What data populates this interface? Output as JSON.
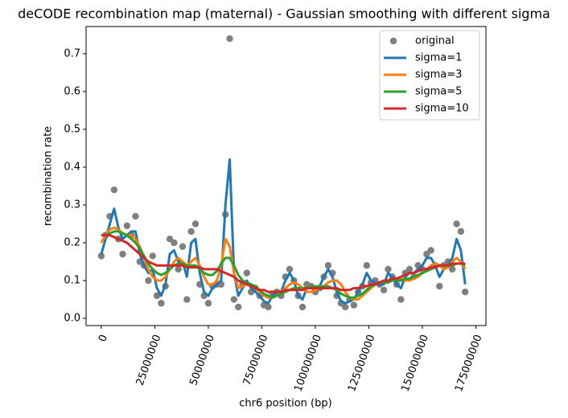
{
  "chart_data": {
    "type": "scatter_line",
    "title": "deCODE recombination map (maternal) - Gaussian smoothing with different sigma",
    "x_label": "chr6 position (bp)",
    "y_label": "recombination rate",
    "x": [
      0,
      2000000,
      4000000,
      6000000,
      8000000,
      10000000,
      12000000,
      14000000,
      16000000,
      18000000,
      20000000,
      22000000,
      24000000,
      26000000,
      28000000,
      30000000,
      32000000,
      34000000,
      36000000,
      38000000,
      40000000,
      42000000,
      44000000,
      46000000,
      48000000,
      50000000,
      52000000,
      54000000,
      56000000,
      58000000,
      60000000,
      62000000,
      64000000,
      66000000,
      68000000,
      70000000,
      72000000,
      74000000,
      76000000,
      78000000,
      80000000,
      82000000,
      84000000,
      86000000,
      88000000,
      90000000,
      92000000,
      94000000,
      96000000,
      98000000,
      100000000,
      102000000,
      104000000,
      106000000,
      108000000,
      110000000,
      112000000,
      114000000,
      116000000,
      118000000,
      120000000,
      122000000,
      124000000,
      126000000,
      128000000,
      130000000,
      132000000,
      134000000,
      136000000,
      138000000,
      140000000,
      142000000,
      144000000,
      146000000,
      148000000,
      150000000,
      152000000,
      154000000,
      156000000,
      158000000,
      160000000,
      162000000,
      164000000,
      166000000,
      168000000,
      170000000
    ],
    "scatter": {
      "name": "original",
      "color": "#7f7f7f",
      "values": [
        0.165,
        0.22,
        0.27,
        0.34,
        0.21,
        0.17,
        0.245,
        0.22,
        0.27,
        0.15,
        0.14,
        0.1,
        0.165,
        0.06,
        0.04,
        0.085,
        0.21,
        0.2,
        0.13,
        0.19,
        0.05,
        0.23,
        0.25,
        0.09,
        0.06,
        0.04,
        0.085,
        0.09,
        0.09,
        0.275,
        0.74,
        0.05,
        0.03,
        0.09,
        0.12,
        0.07,
        0.08,
        0.06,
        0.035,
        0.03,
        0.065,
        0.07,
        0.06,
        0.11,
        0.13,
        0.1,
        0.06,
        0.03,
        0.09,
        0.085,
        0.07,
        0.08,
        0.11,
        0.14,
        0.12,
        0.06,
        0.04,
        0.03,
        0.05,
        0.035,
        0.07,
        0.085,
        0.14,
        0.095,
        0.1,
        0.09,
        0.075,
        0.13,
        0.11,
        0.09,
        0.05,
        0.12,
        0.13,
        0.11,
        0.14,
        0.13,
        0.17,
        0.18,
        0.14,
        0.085,
        0.14,
        0.15,
        0.13,
        0.25,
        0.23,
        0.07
      ]
    },
    "series": [
      {
        "name": "sigma=1",
        "color": "#1f77b4",
        "values": [
          0.17,
          0.21,
          0.25,
          0.29,
          0.24,
          0.21,
          0.22,
          0.23,
          0.23,
          0.17,
          0.14,
          0.12,
          0.13,
          0.08,
          0.06,
          0.09,
          0.17,
          0.18,
          0.15,
          0.15,
          0.11,
          0.2,
          0.21,
          0.12,
          0.07,
          0.06,
          0.08,
          0.09,
          0.1,
          0.3,
          0.42,
          0.12,
          0.06,
          0.08,
          0.1,
          0.08,
          0.07,
          0.06,
          0.045,
          0.04,
          0.06,
          0.07,
          0.07,
          0.1,
          0.12,
          0.1,
          0.06,
          0.05,
          0.08,
          0.08,
          0.075,
          0.085,
          0.11,
          0.13,
          0.11,
          0.07,
          0.045,
          0.04,
          0.045,
          0.05,
          0.07,
          0.09,
          0.12,
          0.1,
          0.095,
          0.09,
          0.09,
          0.12,
          0.11,
          0.09,
          0.08,
          0.11,
          0.12,
          0.12,
          0.13,
          0.14,
          0.16,
          0.16,
          0.14,
          0.11,
          0.13,
          0.14,
          0.16,
          0.21,
          0.18,
          0.09
        ]
      },
      {
        "name": "sigma=3",
        "color": "#ff7f0e",
        "values": [
          0.2,
          0.22,
          0.235,
          0.24,
          0.235,
          0.225,
          0.22,
          0.22,
          0.21,
          0.19,
          0.16,
          0.13,
          0.11,
          0.1,
          0.1,
          0.11,
          0.13,
          0.15,
          0.16,
          0.15,
          0.14,
          0.15,
          0.16,
          0.14,
          0.11,
          0.09,
          0.09,
          0.1,
          0.14,
          0.21,
          0.19,
          0.12,
          0.08,
          0.085,
          0.09,
          0.09,
          0.08,
          0.07,
          0.06,
          0.055,
          0.055,
          0.06,
          0.07,
          0.08,
          0.09,
          0.095,
          0.09,
          0.08,
          0.07,
          0.07,
          0.075,
          0.08,
          0.085,
          0.095,
          0.1,
          0.1,
          0.09,
          0.07,
          0.055,
          0.05,
          0.05,
          0.06,
          0.07,
          0.08,
          0.09,
          0.095,
          0.095,
          0.095,
          0.1,
          0.105,
          0.105,
          0.1,
          0.1,
          0.105,
          0.11,
          0.12,
          0.13,
          0.14,
          0.145,
          0.14,
          0.13,
          0.135,
          0.15,
          0.16,
          0.15,
          0.13
        ]
      },
      {
        "name": "sigma=5",
        "color": "#2ca02c",
        "values": [
          0.22,
          0.22,
          0.225,
          0.23,
          0.23,
          0.225,
          0.22,
          0.21,
          0.2,
          0.185,
          0.165,
          0.145,
          0.13,
          0.12,
          0.115,
          0.12,
          0.13,
          0.14,
          0.145,
          0.145,
          0.14,
          0.14,
          0.14,
          0.13,
          0.12,
          0.115,
          0.115,
          0.125,
          0.145,
          0.16,
          0.16,
          0.14,
          0.115,
          0.1,
          0.095,
          0.09,
          0.085,
          0.075,
          0.065,
          0.06,
          0.055,
          0.06,
          0.065,
          0.07,
          0.075,
          0.08,
          0.08,
          0.08,
          0.08,
          0.085,
          0.085,
          0.085,
          0.085,
          0.085,
          0.08,
          0.075,
          0.065,
          0.06,
          0.055,
          0.055,
          0.06,
          0.065,
          0.075,
          0.085,
          0.09,
          0.095,
          0.095,
          0.095,
          0.1,
          0.1,
          0.1,
          0.105,
          0.105,
          0.11,
          0.115,
          0.12,
          0.125,
          0.13,
          0.135,
          0.14,
          0.14,
          0.14,
          0.14,
          0.145,
          0.145,
          0.14
        ]
      },
      {
        "name": "sigma=10",
        "color": "#d62728",
        "values": [
          0.22,
          0.22,
          0.22,
          0.215,
          0.21,
          0.205,
          0.2,
          0.19,
          0.18,
          0.17,
          0.16,
          0.15,
          0.145,
          0.14,
          0.14,
          0.14,
          0.14,
          0.14,
          0.14,
          0.14,
          0.135,
          0.135,
          0.135,
          0.135,
          0.13,
          0.13,
          0.13,
          0.13,
          0.125,
          0.12,
          0.115,
          0.11,
          0.1,
          0.095,
          0.09,
          0.085,
          0.08,
          0.075,
          0.075,
          0.07,
          0.07,
          0.07,
          0.07,
          0.075,
          0.075,
          0.075,
          0.075,
          0.075,
          0.08,
          0.08,
          0.08,
          0.08,
          0.08,
          0.08,
          0.08,
          0.08,
          0.075,
          0.075,
          0.075,
          0.08,
          0.08,
          0.085,
          0.085,
          0.09,
          0.09,
          0.095,
          0.1,
          0.1,
          0.105,
          0.105,
          0.11,
          0.115,
          0.12,
          0.12,
          0.125,
          0.13,
          0.13,
          0.135,
          0.135,
          0.14,
          0.14,
          0.14,
          0.145,
          0.145,
          0.145,
          0.145
        ]
      }
    ],
    "xlim": [
      -7100000,
      179700000
    ],
    "ylim": [
      -0.019,
      0.772
    ],
    "xticks": [
      0,
      25000000,
      50000000,
      75000000,
      100000000,
      125000000,
      150000000,
      175000000
    ],
    "yticks": [
      {
        "value": 0,
        "label": "0.0"
      },
      0.1,
      0.2,
      0.3,
      0.4,
      0.5,
      0.6,
      0.7
    ],
    "legend": "upper right"
  }
}
